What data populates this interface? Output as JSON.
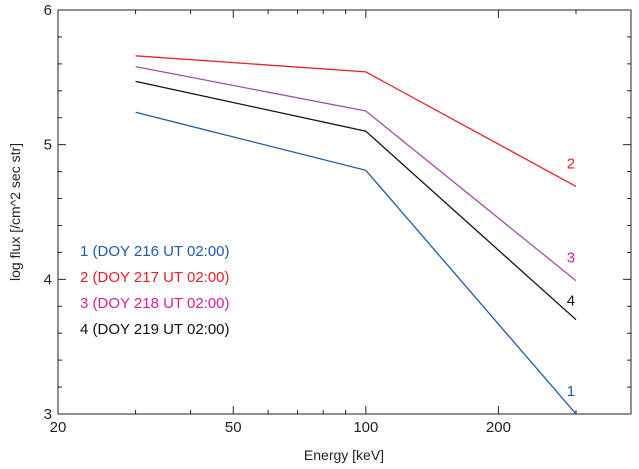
{
  "chart_data": {
    "type": "line",
    "xscale": "log",
    "xlabel": "Energy [keV]",
    "ylabel": "log flux [/cm^2 sec str]",
    "xlim": [
      20,
      400
    ],
    "ylim": [
      3,
      6
    ],
    "xticks": [
      {
        "value": 20,
        "label": "20"
      },
      {
        "value": 50,
        "label": "50"
      },
      {
        "value": 100,
        "label": "100"
      },
      {
        "value": 200,
        "label": "200"
      }
    ],
    "yticks": [
      {
        "value": 3,
        "label": "3"
      },
      {
        "value": 4,
        "label": "4"
      },
      {
        "value": 5,
        "label": "5"
      },
      {
        "value": 6,
        "label": "6"
      }
    ],
    "grid": false,
    "legend_position": "left",
    "x": [
      30,
      100,
      300
    ],
    "series": [
      {
        "name": "1 (DOY 216 UT 02:00)",
        "label": "1",
        "color": "#1f5aa6",
        "values": [
          5.24,
          4.81,
          3.0
        ]
      },
      {
        "name": "2 (DOY 217 UT 02:00)",
        "label": "2",
        "color": "#e8202a",
        "values": [
          5.66,
          5.54,
          4.69
        ]
      },
      {
        "name": "3 (DOY 218 UT 02:00)",
        "label": "3",
        "color": "#a24fa8",
        "label_color": "#d6209b",
        "values": [
          5.58,
          5.25,
          3.99
        ]
      },
      {
        "name": "4 (DOY 219 UT 02:00)",
        "label": "4",
        "color": "#111111",
        "values": [
          5.47,
          5.1,
          3.7
        ]
      }
    ]
  }
}
